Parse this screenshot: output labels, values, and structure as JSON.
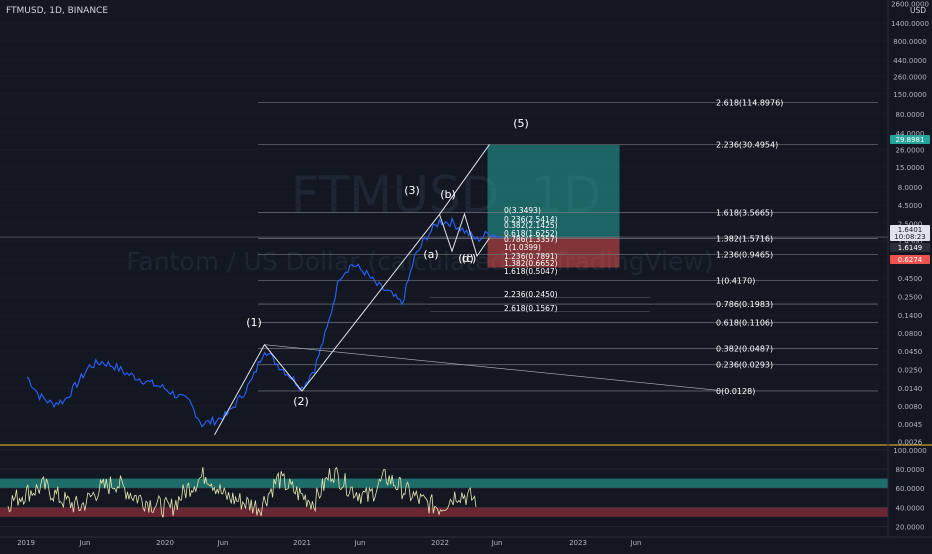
{
  "header": {
    "symbol_label": "FTMUSD, 1D, BINANCE"
  },
  "watermark": {
    "symbol": "FTMUSD, 1D",
    "description": "Fantom / US Dollar (calculated by TradingView)"
  },
  "price_axis": {
    "currency": "USD",
    "scale": "log",
    "ticks": [
      "1400.0000",
      "800.0000",
      "440.0000",
      "260.0000",
      "150.0000",
      "80.0000",
      "44.0000",
      "26.0000",
      "15.0000",
      "8.0000",
      "4.5000",
      "2.5000",
      "1.4500",
      "0.8000",
      "0.4500",
      "0.2500",
      "0.1400",
      "0.0800",
      "0.0450",
      "0.0250",
      "0.0140",
      "0.0080",
      "0.0045",
      "0.0026"
    ],
    "top_partial_tick": "2600.0000"
  },
  "time_axis": {
    "ticks": [
      "2019",
      "Jun",
      "2020",
      "Jun",
      "2021",
      "Jun",
      "2022",
      "Jun",
      "2023",
      "Jun"
    ]
  },
  "price_badges": [
    {
      "value": "29.8981",
      "color": "#26a69a"
    },
    {
      "value": "1.6401",
      "color": "#e0e3eb",
      "sub": "10:08:23"
    },
    {
      "value": "1.6149",
      "color": "#2a2e39"
    },
    {
      "value": "0.6274",
      "color": "#ef5350"
    }
  ],
  "fib_extension_labels": [
    {
      "price": 114.8976,
      "label": "2.618(114.8976)"
    },
    {
      "price": 30.4954,
      "label": "2.236(30.4954)"
    },
    {
      "price": 3.5665,
      "label": "1.618(3.5665)"
    },
    {
      "price": 1.5716,
      "label": "1.382(1.5716)"
    },
    {
      "price": 0.9465,
      "label": "1.236(0.9465)"
    },
    {
      "price": 0.417,
      "label": "1(0.4170)"
    },
    {
      "price": 0.1983,
      "label": "0.786(0.1983)"
    },
    {
      "price": 0.1106,
      "label": "0.618(0.1106)"
    },
    {
      "price": 0.0487,
      "label": "0.382(0.0487)"
    },
    {
      "price": 0.0293,
      "label": "0.236(0.0293)"
    },
    {
      "price": 0.0128,
      "label": "0(0.0128)"
    }
  ],
  "fib_retrace_labels": [
    "0(3.3493)",
    "0.236(2.5414)",
    "0.382(2.1425)",
    "0.618(1.6252)",
    "0.786(1.3357)",
    "1(1.0399)",
    "1.236(0.7891)",
    "1.382(0.6652)",
    "1.618(0.5047)",
    "2.236(0.2450)",
    "2.618(0.1567)"
  ],
  "wave_labels": [
    "(1)",
    "(2)",
    "(3)",
    "(4)",
    "(5)",
    "(a)",
    "(b)",
    "(c)",
    "(d)"
  ],
  "position_tool": {
    "target": 29.8981,
    "entry": 1.6149,
    "stop": 0.6274
  },
  "rsi": {
    "ticks": [
      "100.0000",
      "80.0000",
      "60.0000",
      "40.0000",
      "20.0000"
    ],
    "upper_band": [
      60,
      70
    ],
    "lower_band": [
      30,
      40
    ]
  },
  "chart_data": {
    "type": "line",
    "title": "FTMUSD, 1D, BINANCE",
    "y_scale": "log",
    "ylim": [
      0.0024,
      2900
    ],
    "x_range": [
      "2019-01",
      "2023-09"
    ],
    "series": [
      {
        "x": [
          "2019-01",
          "2019-02",
          "2019-03",
          "2019-04",
          "2019-05",
          "2019-06",
          "2019-07",
          "2019-08",
          "2019-09",
          "2019-10",
          "2019-11",
          "2019-12",
          "2020-01",
          "2020-02",
          "2020-03",
          "2020-04",
          "2020-05",
          "2020-06",
          "2020-07",
          "2020-08",
          "2020-09",
          "2020-10",
          "2020-11",
          "2020-12",
          "2021-01",
          "2021-02",
          "2021-03",
          "2021-04",
          "2021-05",
          "2021-06",
          "2021-07",
          "2021-08",
          "2021-09",
          "2021-10",
          "2021-11",
          "2021-12",
          "2022-01",
          "2022-02",
          "2022-03"
        ],
        "values": [
          0.02,
          0.011,
          0.0085,
          0.0095,
          0.016,
          0.028,
          0.032,
          0.028,
          0.022,
          0.019,
          0.016,
          0.014,
          0.011,
          0.009,
          0.0045,
          0.005,
          0.006,
          0.01,
          0.018,
          0.048,
          0.03,
          0.021,
          0.014,
          0.026,
          0.09,
          0.47,
          0.7,
          0.55,
          0.36,
          0.28,
          0.2,
          0.85,
          1.7,
          2.7,
          2.6,
          2.0,
          1.5,
          1.9,
          1.6
        ]
      },
      {
        "name": "RSI",
        "values": [
          45,
          55,
          62,
          48,
          40,
          58,
          66,
          52,
          44,
          38,
          60,
          75,
          52,
          46,
          40,
          70,
          56,
          45,
          78,
          60,
          50,
          72,
          58,
          46,
          40,
          55,
          48
        ]
      }
    ]
  }
}
